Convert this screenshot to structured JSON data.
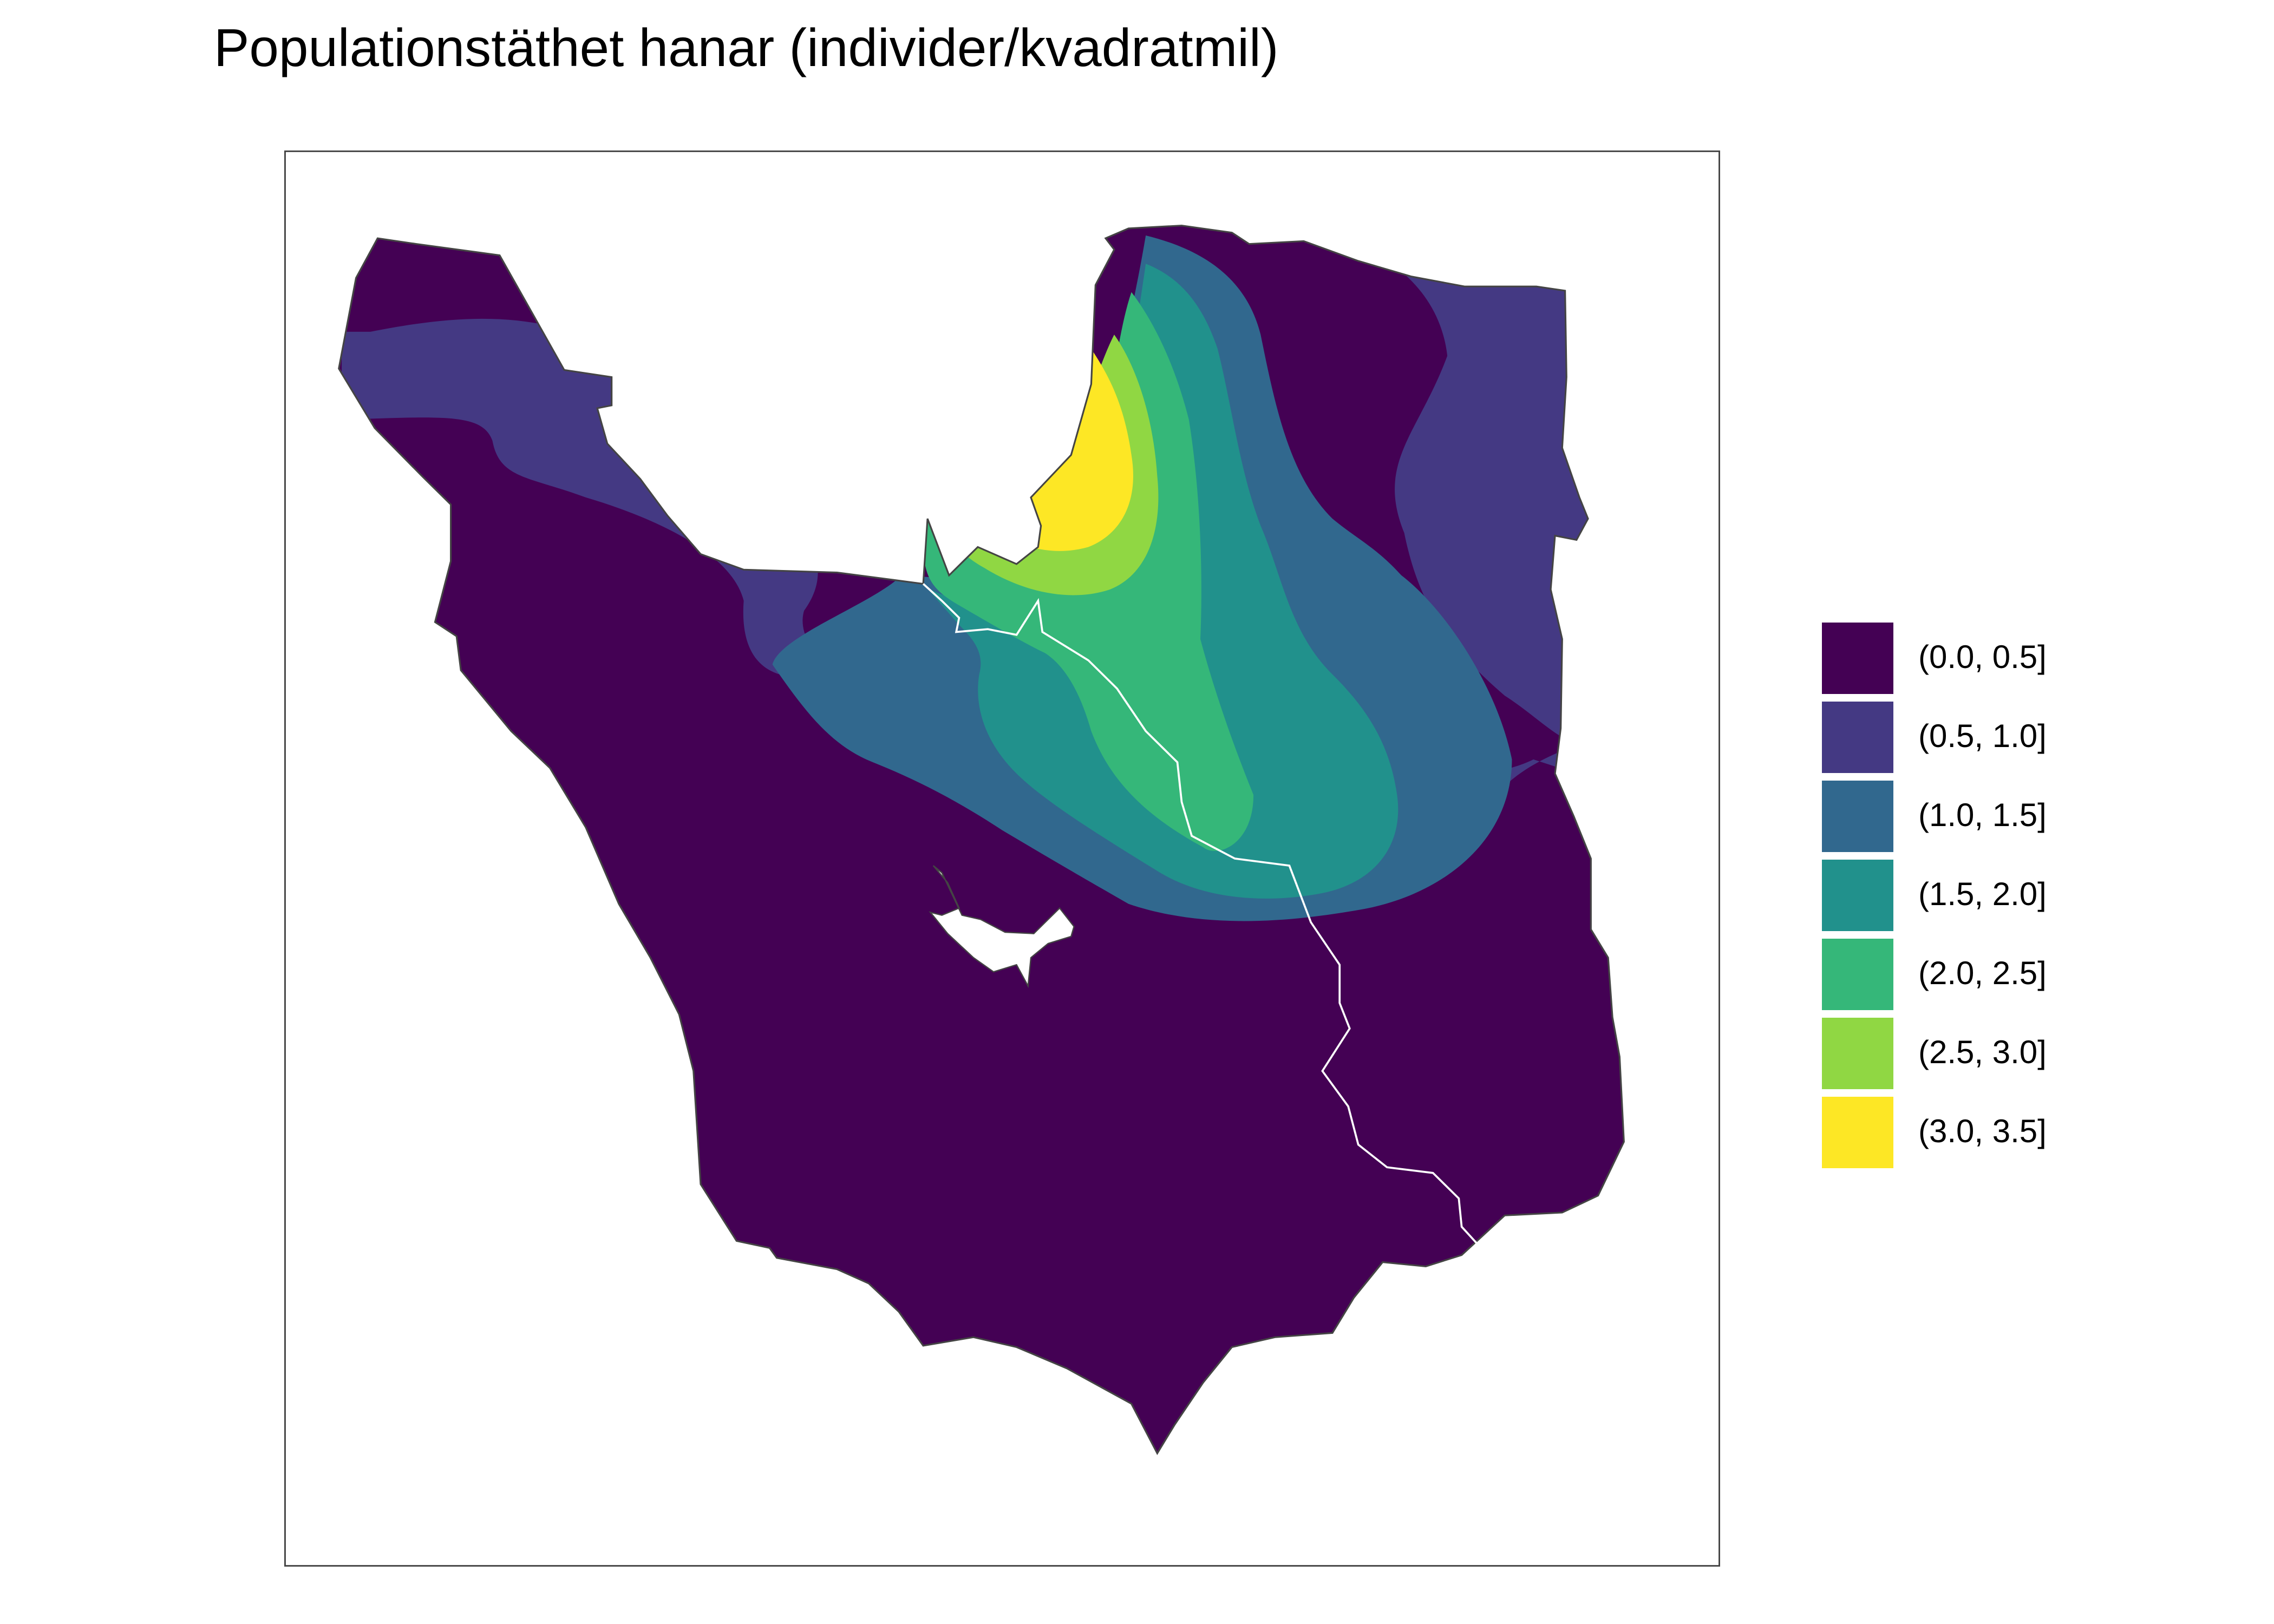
{
  "title": "Populationstäthet hanar (individer/kvadratmil)",
  "legend": {
    "items": [
      {
        "label": "(0.0, 0.5]",
        "color": "#440154"
      },
      {
        "label": "(0.5, 1.0]",
        "color": "#443983"
      },
      {
        "label": "(1.0, 1.5]",
        "color": "#31688E"
      },
      {
        "label": "(1.5, 2.0]",
        "color": "#21918C"
      },
      {
        "label": "(2.0, 2.5]",
        "color": "#35B779"
      },
      {
        "label": "(2.5, 3.0]",
        "color": "#90D743"
      },
      {
        "label": "(3.0, 3.5]",
        "color": "#FDE725"
      }
    ]
  },
  "colors": {
    "frame": "#444444",
    "outline": "#444444",
    "internal_border": "#ffffff",
    "background": "#ffffff"
  }
}
